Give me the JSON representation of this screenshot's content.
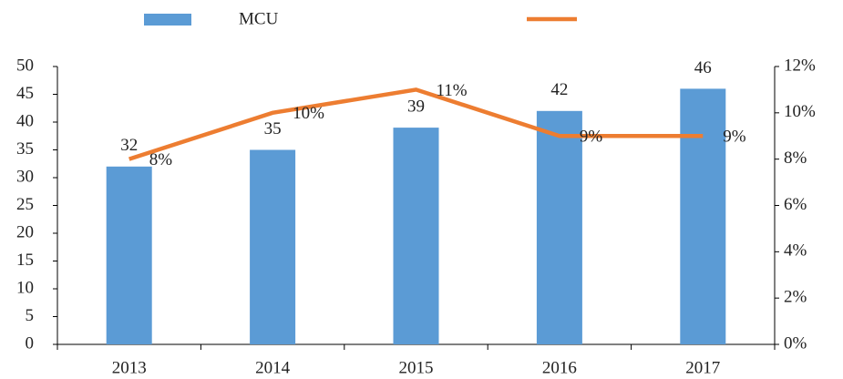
{
  "chart_data": {
    "type": "bar",
    "categories": [
      "2013",
      "2014",
      "2015",
      "2016",
      "2017"
    ],
    "series": [
      {
        "name": "MCU",
        "type": "bar",
        "color": "#5b9bd5",
        "values": [
          32,
          35,
          39,
          42,
          46
        ]
      },
      {
        "type": "line",
        "axis": "y2",
        "color": "#ed7d31",
        "values": [
          8,
          10,
          11,
          9,
          9
        ],
        "value_labels": [
          "8%",
          "10%",
          "11%",
          "9%",
          "9%"
        ]
      }
    ],
    "ylim": [
      0,
      50
    ],
    "yticks": [
      0,
      5,
      10,
      15,
      20,
      25,
      30,
      35,
      40,
      45,
      50
    ],
    "y2lim": [
      0,
      12
    ],
    "y2ticks": [
      {
        "value": 0,
        "label": "0%"
      },
      {
        "value": 2,
        "label": "2%"
      },
      {
        "value": 4,
        "label": "4%"
      },
      {
        "value": 6,
        "label": "6%"
      },
      {
        "value": 8,
        "label": "8%"
      },
      {
        "value": 10,
        "label": "10%"
      },
      {
        "value": 12,
        "label": "12%"
      }
    ],
    "grid": false
  }
}
